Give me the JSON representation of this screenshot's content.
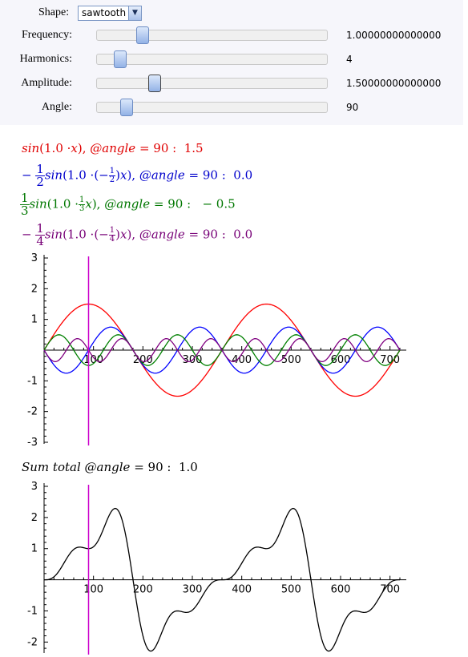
{
  "controls": {
    "shape": {
      "label": "Shape:",
      "value": "sawtooth"
    },
    "sliders": [
      {
        "key": "frequency",
        "label": "Frequency:",
        "value": "1.00000000000000",
        "position": 0.2
      },
      {
        "key": "harmonics",
        "label": "Harmonics:",
        "value": "4",
        "position": 0.1
      },
      {
        "key": "amplitude",
        "label": "Amplitude:",
        "value": "1.50000000000000",
        "position": 0.25
      },
      {
        "key": "angle",
        "label": "Angle:",
        "value": "90",
        "position": 0.13
      }
    ]
  },
  "formulas": [
    {
      "color": "#e00000",
      "text": "1.5"
    },
    {
      "color": "#0000cc",
      "text": "0.0"
    },
    {
      "color": "#007700",
      "text": "− 0.5"
    },
    {
      "color": "#770077",
      "text": "0.0"
    }
  ],
  "formula_parts": {
    "sin": "sin",
    "coef": "1.0",
    "angle_label": "@angle",
    "angle_value": "90",
    "frac_half": [
      "1",
      "2"
    ],
    "frac_third": [
      "1",
      "3"
    ],
    "frac_quarter": [
      "1",
      "4"
    ],
    "minus": "−"
  },
  "sum_total": {
    "label": "Sum total",
    "angle_label": "@angle",
    "angle_value": "90",
    "value": "1.0"
  },
  "colors": {
    "h1": "#ff0000",
    "h2": "#0000ff",
    "h3": "#008000",
    "h4": "#800080",
    "sum": "#000000",
    "marker": "#cc00cc"
  },
  "chart_data": [
    {
      "type": "line",
      "title": "",
      "xlabel": "",
      "ylabel": "",
      "xlim": [
        0,
        720
      ],
      "ylim": [
        -3,
        3
      ],
      "x_ticks": [
        100,
        200,
        300,
        400,
        500,
        600,
        700
      ],
      "y_ticks": [
        -3,
        -2,
        -1,
        1,
        2,
        3
      ],
      "vline_x": 90,
      "series": [
        {
          "amplitude": 1.5,
          "harmonic": 1
        },
        {
          "amplitude": -0.75,
          "harmonic": 2
        },
        {
          "amplitude": 0.5,
          "harmonic": 3
        },
        {
          "amplitude": -0.375,
          "harmonic": 4
        }
      ]
    },
    {
      "type": "line",
      "title": "",
      "xlabel": "",
      "ylabel": "",
      "xlim": [
        0,
        720
      ],
      "ylim": [
        -2.3,
        3
      ],
      "x_ticks": [
        100,
        200,
        300,
        400,
        500,
        600,
        700
      ],
      "y_ticks": [
        -2,
        -1,
        1,
        2,
        3
      ],
      "vline_x": 90,
      "series": [
        {
          "terms": [
            [
              1.5,
              1
            ],
            [
              -0.75,
              2
            ],
            [
              0.5,
              3
            ],
            [
              -0.375,
              4
            ]
          ]
        }
      ]
    }
  ]
}
